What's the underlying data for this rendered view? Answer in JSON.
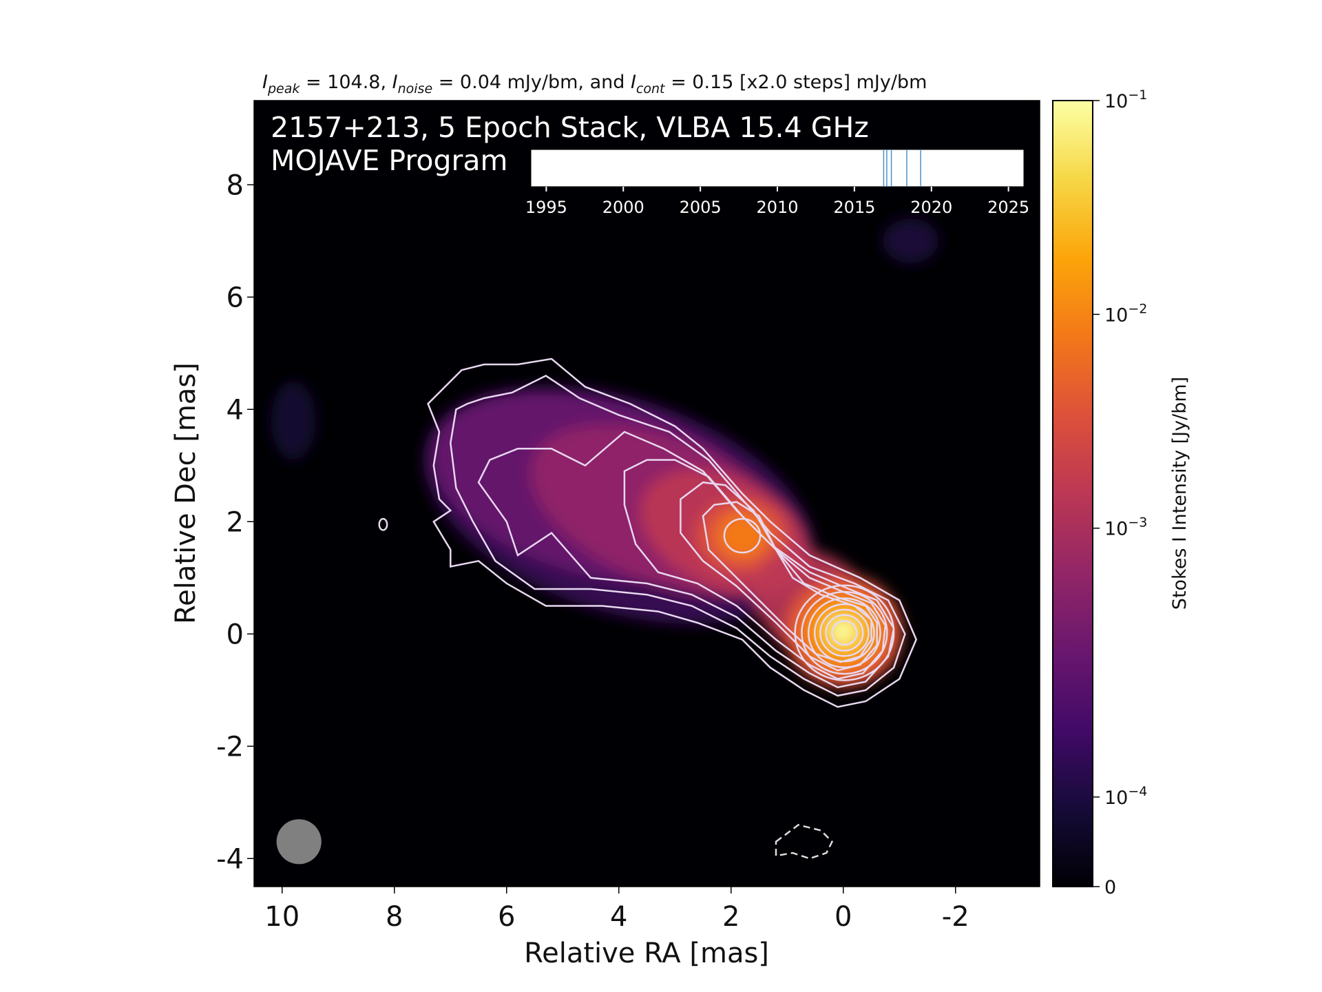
{
  "chart_data": {
    "type": "heatmap",
    "title_parts": {
      "i": "I",
      "peak_sub": "peak",
      "peak_text": " = 104.8, ",
      "noise_sub": "noise",
      "noise_text": " = 0.04 mJy/bm, and ",
      "cont_sub": "cont",
      "cont_text": " = 0.15 [x2.0 steps] mJy/bm"
    },
    "image_title_line1": "2157+213, 5 Epoch Stack, VLBA 15.4 GHz",
    "image_title_line2": "MOJAVE Program",
    "xlabel": "Relative RA [mas]",
    "ylabel": "Relative Dec [mas]",
    "xlim": [
      10.5,
      -3.5
    ],
    "ylim": [
      -4.5,
      9.5
    ],
    "x_ticks": [
      10,
      8,
      6,
      4,
      2,
      0,
      -2
    ],
    "x_tick_labels": [
      "10",
      "8",
      "6",
      "4",
      "2",
      "0",
      "-2"
    ],
    "y_ticks": [
      8,
      6,
      4,
      2,
      0,
      -2,
      -4
    ],
    "y_tick_labels": [
      "8",
      "6",
      "4",
      "2",
      "0",
      "-2",
      "-4"
    ],
    "colormap": "inferno",
    "colorbar": {
      "label": "Stokes I Intensity [Jy/bm]",
      "scale": "log",
      "range_jy": [
        0,
        0.1
      ],
      "ticks": [
        {
          "value": 0.1,
          "base": "10",
          "exp": "−1"
        },
        {
          "value": 0.01,
          "base": "10",
          "exp": "−2"
        },
        {
          "value": 0.001,
          "base": "10",
          "exp": "−3"
        },
        {
          "value": 0.0001,
          "base": "10",
          "exp": "−4"
        },
        {
          "value": 0,
          "base": "0",
          "exp": ""
        }
      ]
    },
    "components": [
      {
        "ra": 0.0,
        "dec": 0.0,
        "peak_mjy": 104.8
      },
      {
        "ra": 1.8,
        "dec": 1.75,
        "peak_mjy": 14
      },
      {
        "ra": 4.3,
        "dec": 2.5,
        "peak_mjy": 3
      }
    ],
    "contour_levels_mjy": [
      0.15,
      0.3,
      0.6,
      1.2,
      2.4,
      4.8,
      9.6,
      19.2,
      38.4,
      76.8
    ],
    "negative_contour_mjy": -0.15,
    "beam": {
      "ra": 9.7,
      "dec": -3.7,
      "major_mas": 0.8,
      "minor_mas": 0.8,
      "color": "#808080"
    },
    "timeline": {
      "xlim": [
        1994,
        2026
      ],
      "ticks": [
        1995,
        2000,
        2005,
        2010,
        2015,
        2020,
        2025
      ],
      "tick_labels": [
        "1995",
        "2000",
        "2005",
        "2010",
        "2015",
        "2020",
        "2025"
      ],
      "epochs": [
        2016.9,
        2017.1,
        2017.4,
        2018.4,
        2019.3
      ],
      "epoch_color": "#4a90c8"
    },
    "grid": false,
    "legend": "none"
  }
}
